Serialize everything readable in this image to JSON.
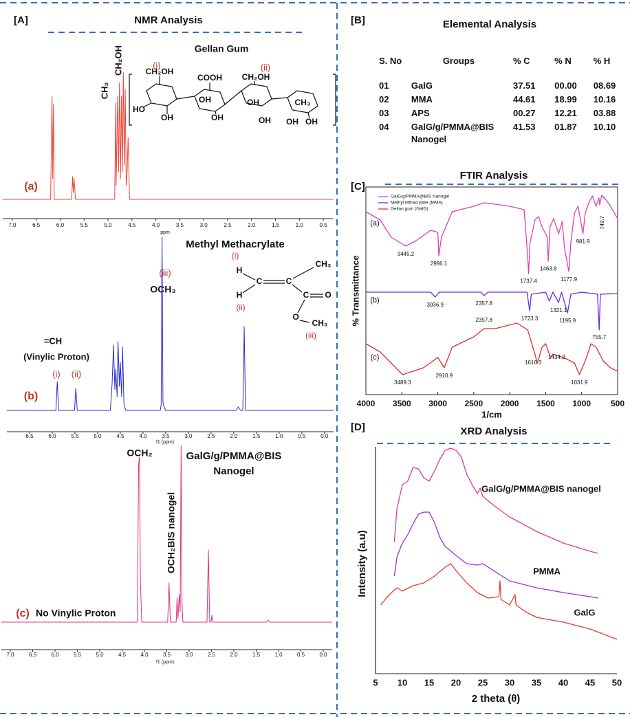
{
  "panel_labels": [
    "[A]",
    "[B]",
    "[C]",
    "[D]"
  ],
  "nmr_title": "NMR Analysis",
  "table": {
    "title": "Elemental Analysis",
    "columns": [
      "S. No",
      "Groups",
      "% C",
      "% N",
      "% H"
    ],
    "rows": [
      [
        "01",
        "GalG",
        "37.51",
        "00.00",
        "08.69"
      ],
      [
        "02",
        "MMA",
        "44.61",
        "18.99",
        "10.16"
      ],
      [
        "03",
        "APS",
        "00.27",
        "12.21",
        "03.88"
      ],
      [
        "04",
        "GalG/g/PMMA@BIS Nanogel",
        "41.53",
        "01.87",
        "10.10"
      ]
    ]
  },
  "chart_data": [
    {
      "type": "line",
      "title": "Gellan Gum",
      "label": "(a)",
      "xlabel": "ppm",
      "annotations": [
        "CH₂OH",
        "CH₂",
        "(i)",
        "(ii)"
      ],
      "structure": [
        "CH₂OH",
        "COOH",
        "CH₂OH",
        "HO",
        "OH",
        "OH",
        "OH",
        "OH",
        "OH",
        "CH₃",
        "OH",
        "OH"
      ],
      "xlim": [
        7.2,
        0.3
      ],
      "ylim": [
        0,
        240
      ],
      "xticks": [
        {
          "value": 7,
          "label": "7.0"
        },
        6.5,
        {
          "value": 6,
          "label": "6.0"
        },
        5.5,
        {
          "value": 5,
          "label": "5.0"
        },
        4.5,
        {
          "value": 4,
          "label": "4.0"
        },
        3.5,
        {
          "value": 3,
          "label": "3.0"
        },
        2.5,
        {
          "value": 2,
          "label": "2.0"
        },
        1.5,
        {
          "value": 1,
          "label": "1.0"
        },
        0.5
      ],
      "x": [
        7.2,
        6.2,
        6.17,
        6.155,
        6.14,
        6.125,
        6.1,
        5.76,
        5.74,
        5.725,
        5.71,
        5.68,
        4.86,
        4.84,
        4.83,
        4.8,
        4.78,
        4.76,
        4.74,
        4.72,
        4.7,
        4.68,
        4.66,
        4.64,
        4.62,
        4.6,
        4.58,
        4.55,
        4.5,
        0.3
      ],
      "series": [
        {
          "color": "#e8473a",
          "values": [
            0,
            0,
            150,
            30,
            138,
            0,
            0,
            0,
            33,
            10,
            30,
            0,
            0,
            140,
            20,
            150,
            40,
            170,
            30,
            150,
            40,
            185,
            50,
            160,
            20,
            40,
            90,
            0,
            0,
            0
          ]
        }
      ]
    },
    {
      "type": "line",
      "title": "Methyl Methacrylate",
      "label": "(b)",
      "xlabel": "f1 (ppm)",
      "annotations": [
        "(iii)",
        "OCH₃",
        "=CH",
        "(Vinylic Proton)",
        "(i)",
        "(ii)"
      ],
      "structure": [
        "(i)",
        "H",
        "C",
        "C",
        "CH₃",
        "H",
        "(ii)",
        "C",
        "O",
        "O",
        "CH₃",
        "(iii)"
      ],
      "xlim": [
        7.0,
        -0.2
      ],
      "ylim": [
        0,
        260
      ],
      "xticks": [
        6.5,
        {
          "value": 6,
          "label": "6.0"
        },
        5.5,
        {
          "value": 5,
          "label": "5.0"
        },
        4.5,
        {
          "value": 4,
          "label": "4.0"
        },
        3.5,
        {
          "value": 3,
          "label": "3.0"
        },
        2.5,
        {
          "value": 2,
          "label": "2.0"
        },
        1.5,
        {
          "value": 1,
          "label": "1.0"
        },
        0.5,
        {
          "value": 0,
          "label": "0.0"
        }
      ],
      "x": [
        7.0,
        5.92,
        5.89,
        5.86,
        5.51,
        5.48,
        5.45,
        4.72,
        4.68,
        4.65,
        4.62,
        4.6,
        4.57,
        4.55,
        4.52,
        4.5,
        4.47,
        4.45,
        4.42,
        4.38,
        3.62,
        3.6,
        3.58,
        3.56,
        3.54,
        3.5,
        1.95,
        1.9,
        1.85,
        1.8,
        1.77,
        1.74,
        -0.2
      ],
      "series": [
        {
          "color": "#2a2ad0",
          "values": [
            0,
            0,
            42,
            0,
            0,
            32,
            0,
            0,
            40,
            95,
            30,
            60,
            20,
            100,
            35,
            70,
            20,
            92,
            10,
            0,
            0,
            8,
            252,
            12,
            6,
            0,
            0,
            5,
            0,
            0,
            122,
            0,
            0
          ]
        }
      ]
    },
    {
      "type": "line",
      "title_lines": [
        "GalG/g/PMMA@BIS",
        "Nanogel"
      ],
      "label": "(c)",
      "xlabel": "f1 (ppm)",
      "annotations": [
        "OCH₂",
        "OCH₂BIS nanogel",
        "No Vinylic Proton"
      ],
      "xlim": [
        7.2,
        -0.2
      ],
      "ylim": [
        0,
        280
      ],
      "xticks": [
        {
          "value": 7,
          "label": "7.0"
        },
        6.5,
        {
          "value": 6,
          "label": "6.0"
        },
        5.5,
        {
          "value": 5,
          "label": "5.0"
        },
        4.5,
        {
          "value": 4,
          "label": "4.0"
        },
        3.5,
        {
          "value": 3,
          "label": "3.0"
        },
        2.5,
        {
          "value": 2,
          "label": "2.0"
        },
        1.5,
        {
          "value": 1,
          "label": "1.0"
        },
        0.5,
        {
          "value": 0,
          "label": "0.0"
        }
      ],
      "x": [
        7.2,
        4.16,
        4.13,
        4.11,
        4.09,
        4.06,
        3.48,
        3.45,
        3.42,
        3.29,
        3.27,
        3.25,
        3.22,
        3.2,
        3.18,
        3.16,
        3.14,
        2.6,
        2.57,
        2.54,
        2.51,
        2.49,
        2.47,
        1.26,
        1.23,
        1.2,
        -0.2
      ],
      "series": [
        {
          "color": "#e0307a",
          "values": [
            0,
            0,
            230,
            240,
            60,
            0,
            0,
            57,
            0,
            0,
            35,
            5,
            40,
            15,
            257,
            30,
            0,
            0,
            105,
            0,
            0,
            10,
            0,
            0,
            3,
            0,
            0
          ]
        }
      ]
    },
    {
      "type": "line",
      "title": "FTIR Analysis",
      "xlabel": "1/cm",
      "ylabel": "% Transmittance",
      "legend": "upper left",
      "xlim": [
        4000,
        500
      ],
      "ylim": [
        0,
        302
      ],
      "xticks": [
        4000,
        3500,
        3000,
        2500,
        2000,
        1500,
        1000,
        500
      ],
      "series": [
        {
          "name": "GalG/g/PMMA@BIS Nanogel",
          "label": "(a)",
          "color": "#e040b8",
          "x": [
            4000,
            3800,
            3650,
            3445,
            3300,
            3100,
            3000,
            2986,
            2950,
            2800,
            2500,
            2350,
            2000,
            1800,
            1760,
            1737,
            1720,
            1650,
            1600,
            1550,
            1480,
            1464,
            1440,
            1390,
            1320,
            1270,
            1240,
            1178,
            1150,
            1100,
            1050,
            982,
            950,
            900,
            850,
            800,
            760,
            750,
            720,
            650,
            600,
            500
          ],
          "values": [
            266,
            254,
            229,
            216,
            224,
            239,
            236,
            202,
            229,
            266,
            274,
            279,
            274,
            269,
            214,
            176,
            219,
            254,
            259,
            244,
            229,
            194,
            244,
            256,
            234,
            252,
            214,
            179,
            222,
            264,
            274,
            234,
            264,
            279,
            289,
            274,
            286,
            276,
            290,
            282,
            274,
            256
          ],
          "peaks": [
            3445.2,
            2986.1,
            1737.4,
            1463.8,
            1177.9,
            981.9,
            749.7
          ]
        },
        {
          "name": "Methyl Mthacrylate (MMA)",
          "label": "(b)",
          "color": "#6a2bd9",
          "x": [
            4000,
            3100,
            3037,
            2980,
            2400,
            2358,
            2300,
            1760,
            1723,
            1700,
            1500,
            1450,
            1400,
            1321,
            1280,
            1196,
            1150,
            1000,
            780,
            756,
            740,
            500
          ],
          "values": [
            149,
            149,
            142,
            149,
            149,
            144,
            149,
            149,
            122,
            146,
            149,
            136,
            149,
            134,
            149,
            119,
            146,
            149,
            146,
            94,
            146,
            147
          ],
          "peaks": [
            3036.9,
            2357.8,
            1723.3,
            1321.1,
            1195.9,
            755.7
          ]
        },
        {
          "name": "Gellan gum (GalG)",
          "label": "(c)",
          "color": "#d8302a",
          "x": [
            4000,
            3800,
            3489,
            3200,
            3000,
            2911,
            2800,
            2500,
            2358,
            2200,
            1900,
            1750,
            1650,
            1616,
            1550,
            1500,
            1434,
            1400,
            1250,
            1100,
            1032,
            950,
            870,
            800,
            700,
            600,
            500
          ],
          "values": [
            74,
            62,
            29,
            39,
            54,
            39,
            69,
            84,
            96,
            96,
            104,
            94,
            59,
            46,
            69,
            74,
            54,
            59,
            54,
            46,
            29,
            49,
            74,
            69,
            49,
            39,
            34
          ],
          "peaks": [
            3489.3,
            2910.9,
            2357.8,
            1616.3,
            1434.2,
            1031.9
          ]
        }
      ]
    },
    {
      "type": "line",
      "title": "XRD Analysis",
      "xlabel": "2 theta (θ)",
      "ylabel": "Intensity (a.u)",
      "xlim": [
        5,
        50
      ],
      "ylim": [
        0,
        340
      ],
      "xticks": [
        5,
        10,
        15,
        20,
        25,
        30,
        35,
        40,
        45,
        50
      ],
      "series": [
        {
          "name": "GalG/g/PMMA@BIS nanogel",
          "color": "#e0389a",
          "x": [
            8.5,
            9,
            10,
            11,
            12,
            13,
            14,
            15,
            16,
            17,
            18,
            19,
            20,
            21,
            22,
            23,
            24,
            24.5,
            25,
            27,
            30,
            35,
            40,
            45,
            46.5
          ],
          "values": [
            192,
            240,
            275,
            280,
            300,
            298,
            285,
            280,
            295,
            312,
            325,
            328,
            325,
            315,
            290,
            275,
            262,
            270,
            258,
            245,
            228,
            207,
            190,
            178,
            175
          ]
        },
        {
          "name": "PMMA",
          "color": "#9b2fd6",
          "x": [
            8.5,
            9,
            10,
            11,
            12,
            13,
            14,
            15,
            16,
            17,
            18,
            20,
            22,
            24,
            25,
            27,
            30,
            35,
            40,
            45,
            46.5
          ],
          "values": [
            142,
            170,
            190,
            202,
            218,
            232,
            235,
            235,
            220,
            198,
            185,
            172,
            160,
            158,
            160,
            150,
            135,
            125,
            118,
            112,
            110
          ]
        },
        {
          "name": "GalG",
          "color": "#e03a2a",
          "x": [
            6,
            7,
            8,
            9,
            10,
            12,
            14,
            16,
            18,
            19,
            20,
            22,
            24,
            26,
            28,
            28.2,
            28.4,
            30,
            31,
            31.2,
            33,
            35,
            40,
            45,
            50
          ],
          "values": [
            100,
            110,
            118,
            125,
            120,
            128,
            132,
            142,
            155,
            160,
            150,
            132,
            118,
            110,
            112,
            135,
            108,
            100,
            115,
            100,
            90,
            82,
            75,
            65,
            50
          ]
        }
      ]
    }
  ]
}
